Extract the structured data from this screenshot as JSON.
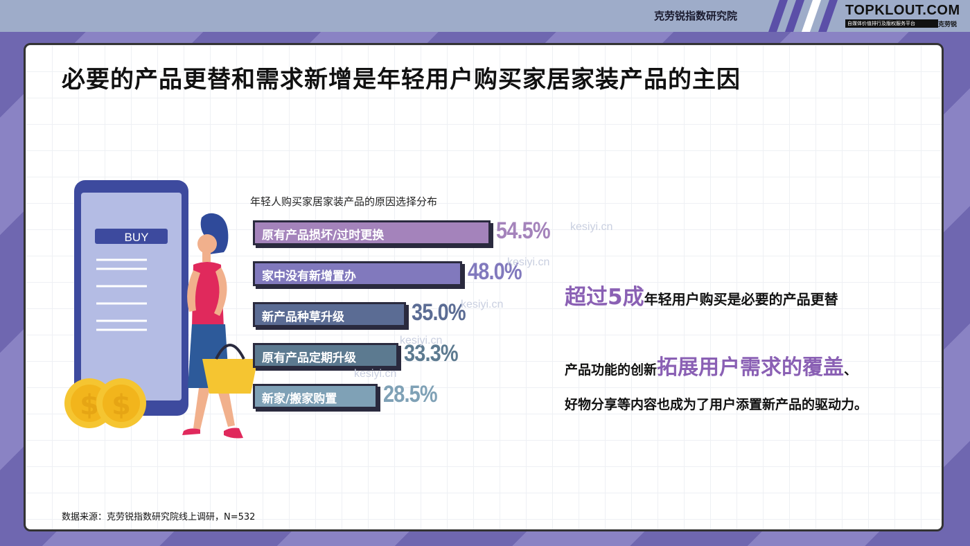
{
  "header": {
    "org_name": "克劳锐指数研究院",
    "logo_text": "TOPKLOUT.COM",
    "logo_tagline": "自媒体价值排行及版权服务平台",
    "logo_brand": "克劳锐"
  },
  "page_title": "必要的产品更替和需求新增是年轻用户购买家居家装产品的主因",
  "illustration": {
    "buy_label": "BUY"
  },
  "watermark_text": "kesiyi.cn",
  "colors": {
    "bar_1": "#a483bb",
    "bar_2": "#8179bd",
    "bar_3": "#5b6c94",
    "bar_4": "#5c7a90",
    "bar_5": "#7fa1b6",
    "highlight": "#8a60b4"
  },
  "chart_data": {
    "type": "bar",
    "orientation": "horizontal",
    "title": "年轻人购买家居家装产品的原因选择分布",
    "categories": [
      "原有产品损坏/过时更换",
      "家中没有新增置办",
      "新产品种草升级",
      "原有产品定期升级",
      "新家/搬家购置"
    ],
    "values": [
      54.5,
      48.0,
      35.0,
      33.3,
      28.5
    ],
    "value_labels": [
      "54.5%",
      "48.0%",
      "35.0%",
      "33.3%",
      "28.5%"
    ],
    "unit": "%"
  },
  "insights": {
    "line1_highlight": "超过5成",
    "line1_rest": "年轻用户购买是必要的产品更替",
    "line2_prefix": "产品功能的创新",
    "line2_highlight": "拓展用户需求的覆盖",
    "line2_suffix": "、",
    "line3": "好物分享等内容也成为了用户添置新产品的驱动力。"
  },
  "source_note": "数据来源：克劳锐指数研究院线上调研，N=532"
}
